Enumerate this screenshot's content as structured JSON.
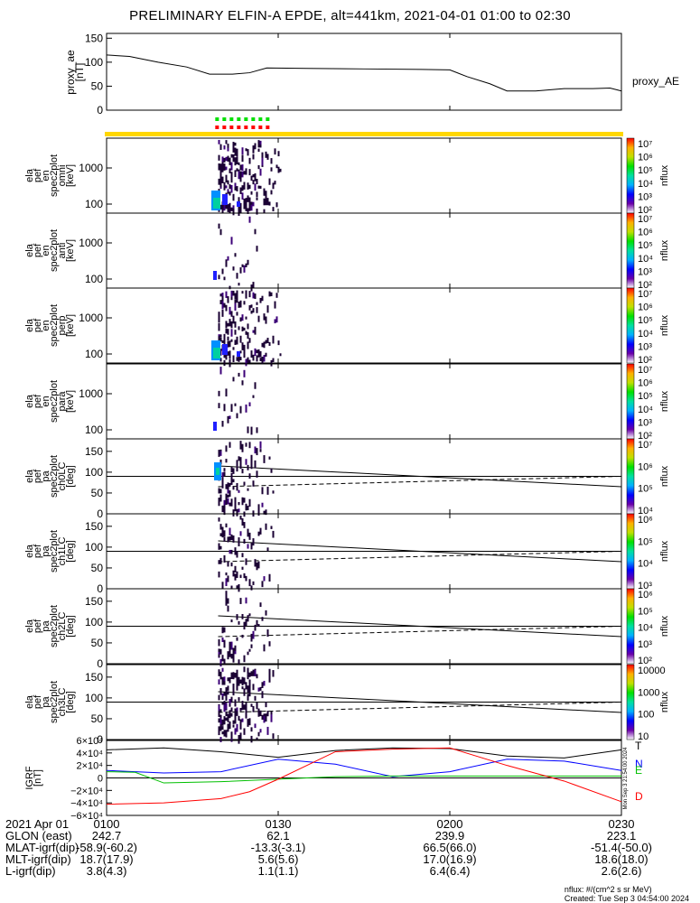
{
  "title": "PRELIMINARY ELFIN-A EPDE, alt=441km, 2021-04-01 01:00 to 02:30",
  "colors": {
    "ae_line": "#000000",
    "status_green": "#00e000",
    "status_red": "#ff0000",
    "status_yellow": "#ffd700",
    "grf_T": "#000000",
    "grf_N": "#0000ff",
    "grf_E": "#00c000",
    "grf_D": "#ff0000"
  },
  "x_ticks": [
    "0100",
    "0130",
    "0200",
    "0230"
  ],
  "x_tick_minutes": [
    0,
    30,
    60,
    90
  ],
  "colorbar": {
    "label": "nflux",
    "ticks_pow": [
      [
        "10⁷",
        "10⁶",
        "10⁵",
        "10⁴",
        "10³",
        "10²"
      ],
      [
        "10⁷",
        "10⁶",
        "10⁵",
        "10⁴",
        "10³",
        "10²"
      ],
      [
        "10⁷",
        "10⁶",
        "10⁵",
        "10⁴",
        "10³",
        "10²"
      ],
      [
        "10⁷",
        "10⁶",
        "10⁵",
        "10⁴",
        "10³",
        "10²"
      ],
      [
        "10⁷",
        "10⁶",
        "10⁵",
        "10⁴"
      ],
      [
        "10⁶",
        "10⁵",
        "10⁴",
        "10³"
      ],
      [
        "10⁶",
        "10⁵",
        "10⁴",
        "10³",
        "10²"
      ],
      [
        "10000",
        "1000",
        "100",
        "10"
      ]
    ]
  },
  "panels": {
    "ae": {
      "ylabel": [
        "proxy_ae",
        "[nT]"
      ],
      "yticks": [
        "150",
        "100",
        "50",
        "0"
      ],
      "legend": "proxy_AE"
    },
    "energy": [
      {
        "ylabel": [
          "ela",
          "pef",
          "en",
          "spec2plot",
          "omni",
          "[keV]"
        ],
        "yticks": [
          "1000",
          "100"
        ]
      },
      {
        "ylabel": [
          "ela",
          "pef",
          "en",
          "spec2plot",
          "anti",
          "[keV]"
        ],
        "yticks": [
          "1000",
          "100"
        ]
      },
      {
        "ylabel": [
          "ela",
          "pef",
          "en",
          "spec2plot",
          "perp",
          "[keV]"
        ],
        "yticks": [
          "1000",
          "100"
        ]
      },
      {
        "ylabel": [
          "ela",
          "pef",
          "en",
          "spec2plot",
          "para",
          "[keV]"
        ],
        "yticks": [
          "1000",
          "100"
        ]
      }
    ],
    "pitch": [
      {
        "ylabel": [
          "ela",
          "pef",
          "pa",
          "spec2plot",
          "ch0LC",
          "[deg]"
        ],
        "yticks": [
          "150",
          "100",
          "50",
          "0"
        ]
      },
      {
        "ylabel": [
          "ela",
          "pef",
          "pa",
          "spec2plot",
          "ch1LC",
          "[deg]"
        ],
        "yticks": [
          "150",
          "100",
          "50",
          "0"
        ]
      },
      {
        "ylabel": [
          "ela",
          "pef",
          "pa",
          "spec2plot",
          "ch2LC",
          "[deg]"
        ],
        "yticks": [
          "150",
          "100",
          "50",
          "0"
        ]
      },
      {
        "ylabel": [
          "ela",
          "pef",
          "pa",
          "spec2plot",
          "ch3LC",
          "[deg]"
        ],
        "yticks": [
          "150",
          "100",
          "50",
          "0"
        ]
      }
    ],
    "grf": {
      "ylabel": [
        "IGRF",
        "[nT]"
      ],
      "yticks": [
        "6×10⁴",
        "4×10⁴",
        "2×10⁴",
        "0",
        "−2×10⁴",
        "−4×10⁴",
        "−6×10⁴"
      ],
      "legend": [
        "T",
        "N",
        "E",
        "D"
      ],
      "side_stamp": "Mon Sep 3 21:54:00 2024"
    }
  },
  "chart_data": {
    "type": "line",
    "time_range": [
      "2021-04-01 01:00",
      "2021-04-01 02:30"
    ],
    "ae": {
      "series": [
        {
          "name": "proxy_AE",
          "x_min": [
            0,
            4,
            9,
            14,
            18,
            22,
            25,
            28,
            35,
            45,
            55,
            60,
            63,
            67,
            70,
            75,
            80,
            85,
            88,
            90
          ],
          "values": [
            115,
            112,
            100,
            90,
            75,
            75,
            78,
            88,
            87,
            86,
            85,
            84,
            70,
            55,
            40,
            40,
            45,
            45,
            46,
            40
          ]
        }
      ],
      "ylim": [
        0,
        160
      ]
    },
    "status_bar_minutes": [
      19,
      29
    ],
    "pitch_lines": {
      "solid_start": 115,
      "solid_end": 65,
      "dashed_start": 65,
      "dashed_end": 90,
      "ref_line": 90
    },
    "grf": {
      "ylim": [
        -60000,
        60000
      ],
      "series": [
        {
          "name": "T",
          "x_min": [
            0,
            10,
            20,
            30,
            40,
            50,
            60,
            70,
            80,
            90
          ],
          "values": [
            45000,
            48000,
            42000,
            33000,
            44000,
            48000,
            47000,
            35000,
            32000,
            45000
          ]
        },
        {
          "name": "N",
          "x_min": [
            0,
            5,
            10,
            20,
            30,
            40,
            50,
            60,
            70,
            80,
            90
          ],
          "values": [
            12000,
            10000,
            8000,
            10000,
            30000,
            22000,
            2000,
            10000,
            30000,
            27000,
            12000
          ]
        },
        {
          "name": "E",
          "x_min": [
            0,
            5,
            10,
            20,
            30,
            40,
            50,
            60,
            70,
            80,
            90
          ],
          "values": [
            10000,
            9000,
            -8000,
            -6000,
            -2000,
            2000,
            3000,
            3000,
            3000,
            3000,
            3000
          ]
        },
        {
          "name": "D",
          "x_min": [
            0,
            10,
            20,
            25,
            30,
            35,
            40,
            50,
            60,
            70,
            80,
            90
          ],
          "values": [
            -42000,
            -40000,
            -33000,
            -22000,
            -2000,
            20000,
            42000,
            46000,
            48000,
            20000,
            -5000,
            -38000
          ]
        }
      ]
    }
  },
  "bottom_table": {
    "rows": [
      {
        "label": "2021 Apr 01",
        "values": [
          "0100",
          "0130",
          "0200",
          "0230"
        ]
      },
      {
        "label": "GLON (east)",
        "values": [
          "242.7",
          "62.1",
          "239.9",
          "223.1"
        ]
      },
      {
        "label": "MLAT-igrf(dip)",
        "values": [
          "-58.9(-60.2)",
          "-13.3(-3.1)",
          "66.5(66.0)",
          "-51.4(-50.0)"
        ]
      },
      {
        "label": "MLT-igrf(dip)",
        "values": [
          "18.7(17.9)",
          "5.6(5.6)",
          "17.0(16.9)",
          "18.6(18.0)"
        ]
      },
      {
        "label": "L-igrf(dip)",
        "values": [
          "3.8(4.3)",
          "1.1(1.1)",
          "6.4(6.4)",
          "2.6(2.6)"
        ]
      }
    ]
  },
  "footer": {
    "units": "nflux: #/(cm^2 s sr MeV)",
    "created": "Created: Tue Sep  3 04:54:00 2024"
  }
}
